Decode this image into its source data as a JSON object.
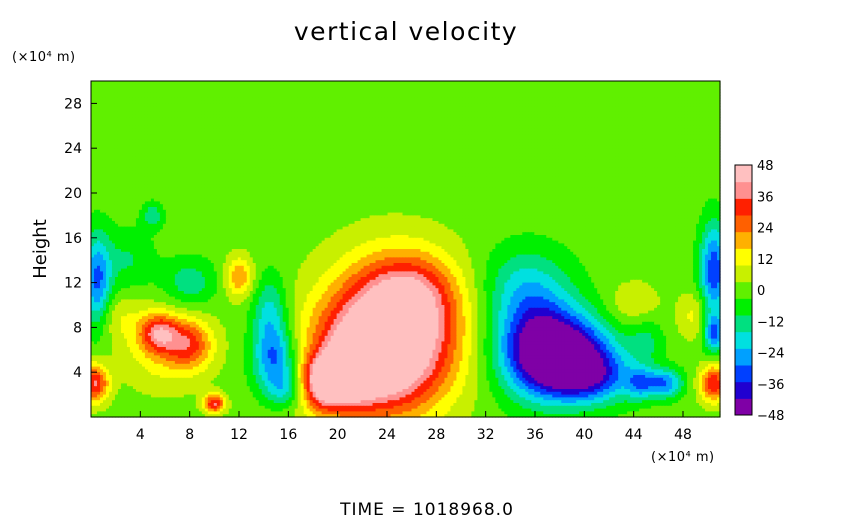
{
  "chart_data": {
    "type": "heatmap",
    "title": "vertical velocity",
    "ylabel": "Height",
    "xlabel": "",
    "x_unit": "(×10⁴ m)",
    "y_unit": "(×10⁴ m)",
    "xlim": [
      0,
      51
    ],
    "ylim": [
      0,
      30
    ],
    "x_ticks": [
      4,
      8,
      12,
      16,
      20,
      24,
      28,
      32,
      36,
      40,
      44,
      48
    ],
    "y_ticks": [
      4,
      8,
      12,
      16,
      20,
      24,
      28
    ],
    "colorbar": {
      "range": [
        -48,
        48
      ],
      "ticks": [
        48,
        36,
        24,
        12,
        0,
        -12,
        -24,
        -36,
        -48
      ],
      "colors": [
        "#7f00a6",
        "#2000d0",
        "#0040ff",
        "#00a0ff",
        "#00e0e0",
        "#00e080",
        "#00f000",
        "#60f000",
        "#c8f000",
        "#ffff00",
        "#ffb000",
        "#ff6000",
        "#ff2000",
        "#ff9090",
        "#ffc0c0"
      ]
    },
    "background_value": 0,
    "features": [
      {
        "x": 24.5,
        "y": 7.5,
        "value": 48,
        "sx": 3.8,
        "sy": 4.5
      },
      {
        "x": 22.5,
        "y": 5,
        "value": 30,
        "sx": 3.5,
        "sy": 3.5
      },
      {
        "x": 19,
        "y": 3,
        "value": 42,
        "sx": 1.5,
        "sy": 1.6
      },
      {
        "x": 21.5,
        "y": 4.5,
        "value": 40,
        "sx": 1.2,
        "sy": 1.6
      },
      {
        "x": 26,
        "y": 11,
        "value": 18,
        "sx": 2.5,
        "sy": 2.5
      },
      {
        "x": 38.5,
        "y": 5.5,
        "value": -46,
        "sx": 2.8,
        "sy": 2.4
      },
      {
        "x": 36,
        "y": 7,
        "value": -30,
        "sx": 2.5,
        "sy": 3.5
      },
      {
        "x": 40.5,
        "y": 3.5,
        "value": -24,
        "sx": 2.5,
        "sy": 1.6
      },
      {
        "x": 35,
        "y": 12,
        "value": -12,
        "sx": 2.5,
        "sy": 2.5
      },
      {
        "x": 5.5,
        "y": 7.5,
        "value": 30,
        "sx": 1.1,
        "sy": 1.2
      },
      {
        "x": 8,
        "y": 6.5,
        "value": 24,
        "sx": 1.3,
        "sy": 1.5
      },
      {
        "x": 6,
        "y": 6,
        "value": 14,
        "sx": 2.5,
        "sy": 2.5
      },
      {
        "x": 10,
        "y": 1.2,
        "value": 36,
        "sx": 0.6,
        "sy": 0.6
      },
      {
        "x": 12,
        "y": 12.5,
        "value": 22,
        "sx": 0.8,
        "sy": 1.3
      },
      {
        "x": 0.3,
        "y": 3,
        "value": 36,
        "sx": 0.8,
        "sy": 1.2
      },
      {
        "x": 50.5,
        "y": 3,
        "value": 34,
        "sx": 0.8,
        "sy": 1.2
      },
      {
        "x": 0.5,
        "y": 12,
        "value": -30,
        "sx": 0.8,
        "sy": 3
      },
      {
        "x": 50.5,
        "y": 13,
        "value": -34,
        "sx": 0.8,
        "sy": 3
      },
      {
        "x": 50.5,
        "y": 7.5,
        "value": -28,
        "sx": 0.6,
        "sy": 1.2
      },
      {
        "x": 15,
        "y": 5,
        "value": -28,
        "sx": 1.3,
        "sy": 2
      },
      {
        "x": 14.5,
        "y": 9,
        "value": -20,
        "sx": 1,
        "sy": 2.5
      },
      {
        "x": 16,
        "y": 2.5,
        "value": -18,
        "sx": 1.2,
        "sy": 1.2
      },
      {
        "x": 8,
        "y": 12,
        "value": -14,
        "sx": 1.5,
        "sy": 1.5
      },
      {
        "x": 3,
        "y": 14,
        "value": -10,
        "sx": 1.5,
        "sy": 2
      },
      {
        "x": 5,
        "y": 18,
        "value": -14,
        "sx": 0.6,
        "sy": 0.8
      },
      {
        "x": 46.5,
        "y": 3,
        "value": -28,
        "sx": 1,
        "sy": 0.9
      },
      {
        "x": 44.5,
        "y": 3,
        "value": -20,
        "sx": 0.8,
        "sy": 1
      },
      {
        "x": 49,
        "y": 9,
        "value": 12,
        "sx": 1,
        "sy": 1.5
      },
      {
        "x": 44,
        "y": 10,
        "value": 10,
        "sx": 1.5,
        "sy": 1.5
      },
      {
        "x": 45,
        "y": 7,
        "value": -10,
        "sx": 1,
        "sy": 1.5
      },
      {
        "x": 2,
        "y": 9,
        "value": 8,
        "sx": 1.5,
        "sy": 1.5
      }
    ]
  },
  "footer": "TIME = 1018968.0"
}
